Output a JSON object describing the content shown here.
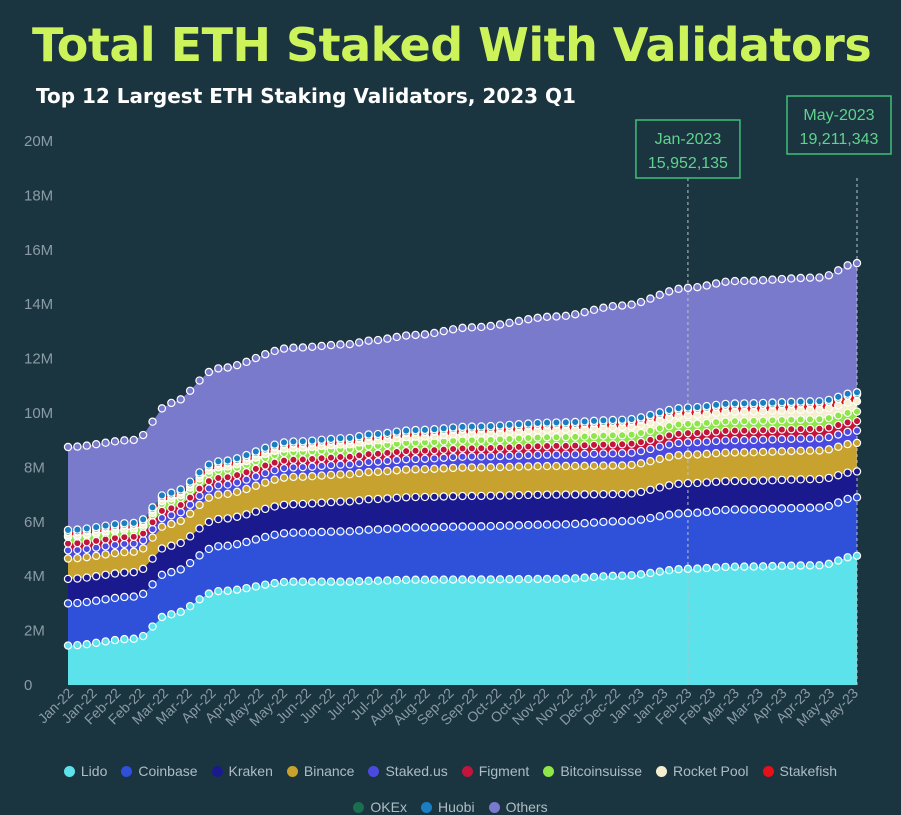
{
  "header": {
    "title": "Total ETH Staked With Validators",
    "subtitle": "Top 12 Largest ETH Staking Validators, 2023 Q1"
  },
  "colors": {
    "background": "#1b3540",
    "title": "#cdf35a",
    "annotation": "#5fd38d",
    "axis_text": "#8a9ba5"
  },
  "chart_data": {
    "type": "area",
    "stacked": true,
    "title": "Total ETH Staked With Validators",
    "subtitle": "Top 12 Largest ETH Staking Validators, 2023 Q1",
    "xlabel": "",
    "ylabel": "",
    "ylim": [
      0,
      20000000
    ],
    "yticks": [
      0,
      2000000,
      4000000,
      6000000,
      8000000,
      10000000,
      12000000,
      14000000,
      16000000,
      18000000,
      20000000
    ],
    "ytick_labels": [
      "0",
      "2M",
      "4M",
      "6M",
      "8M",
      "10M",
      "12M",
      "14M",
      "16M",
      "18M",
      "20M"
    ],
    "grid": false,
    "legend_position": "bottom",
    "x_tick_labels": [
      "Jan-22",
      "Jan-22",
      "Feb-22",
      "Feb-22",
      "Mar-22",
      "Mar-22",
      "Apr-22",
      "Apr-22",
      "May-22",
      "May-22",
      "Jun-22",
      "Jun-22",
      "Jul-22",
      "Jul-22",
      "Aug-22",
      "Aug-22",
      "Sep-22",
      "Sep-22",
      "Oct-22",
      "Oct-22",
      "Nov-22",
      "Nov-22",
      "Dec-22",
      "Dec-22",
      "Jan-23",
      "Jan-23",
      "Feb-23",
      "Feb-23",
      "Mar-23",
      "Mar-23",
      "Apr-23",
      "Apr-23",
      "May-23",
      "May-23"
    ],
    "x_anchor_points": [
      0,
      7,
      8,
      10,
      11,
      16,
      24,
      30,
      32,
      37,
      43,
      52,
      59,
      66,
      71,
      80,
      84
    ],
    "total_points": 85,
    "series": [
      {
        "name": "Lido",
        "color": "#5ce2ea",
        "values": [
          1.45,
          1.7,
          1.8,
          2.5,
          2.6,
          3.45,
          3.8,
          3.8,
          3.83,
          3.87,
          3.88,
          3.9,
          4.02,
          4.27,
          4.35,
          4.4,
          4.75,
          5.0,
          5.3,
          5.35,
          5.65,
          5.85
        ]
      },
      {
        "name": "Coinbase",
        "color": "#2f50d8",
        "values": [
          1.55,
          1.55,
          1.55,
          1.55,
          1.55,
          1.65,
          1.8,
          1.85,
          1.88,
          1.92,
          1.95,
          2.0,
          2.0,
          2.05,
          2.1,
          2.12,
          2.15,
          2.1,
          2.25,
          2.2,
          2.15,
          2.2
        ]
      },
      {
        "name": "Kraken",
        "color": "#1a1a8e",
        "values": [
          0.9,
          0.9,
          0.92,
          0.97,
          0.97,
          1.0,
          1.05,
          1.1,
          1.12,
          1.12,
          1.12,
          1.1,
          1.0,
          1.1,
          1.05,
          1.05,
          0.95,
          0.9,
          0.75,
          0.75,
          0.75,
          0.82
        ]
      },
      {
        "name": "Binance",
        "color": "#c8a22e",
        "values": [
          0.75,
          0.75,
          0.75,
          0.8,
          0.8,
          0.9,
          1.0,
          1.0,
          1.0,
          1.02,
          1.05,
          1.05,
          1.05,
          1.05,
          1.05,
          1.05,
          1.05,
          1.05,
          1.0,
          1.0,
          1.05,
          1.1
        ]
      },
      {
        "name": "Staked.us",
        "color": "#4a4ae0",
        "values": [
          0.3,
          0.3,
          0.3,
          0.32,
          0.32,
          0.34,
          0.35,
          0.36,
          0.37,
          0.38,
          0.4,
          0.42,
          0.45,
          0.45,
          0.45,
          0.45,
          0.45,
          0.45,
          0.5,
          0.5,
          0.5,
          0.55
        ]
      },
      {
        "name": "Figment",
        "color": "#c4143c",
        "values": [
          0.25,
          0.25,
          0.25,
          0.26,
          0.26,
          0.27,
          0.28,
          0.28,
          0.29,
          0.3,
          0.3,
          0.32,
          0.33,
          0.34,
          0.35,
          0.35,
          0.35,
          0.38,
          0.4,
          0.4,
          0.4,
          0.45
        ]
      },
      {
        "name": "Bitcoinsuisse",
        "color": "#8ee64a",
        "values": [
          0.25,
          0.25,
          0.25,
          0.26,
          0.26,
          0.27,
          0.28,
          0.28,
          0.29,
          0.3,
          0.3,
          0.32,
          0.33,
          0.34,
          0.35,
          0.35,
          0.35,
          0.38,
          0.4,
          0.4,
          0.4,
          0.45
        ]
      },
      {
        "name": "Rocket Pool",
        "color": "#f5efcf",
        "values": [
          0.05,
          0.06,
          0.07,
          0.1,
          0.1,
          0.12,
          0.16,
          0.18,
          0.2,
          0.22,
          0.25,
          0.28,
          0.3,
          0.32,
          0.35,
          0.36,
          0.38,
          0.4,
          0.42,
          0.45,
          0.48,
          0.5
        ]
      },
      {
        "name": "Stakefish",
        "color": "#e4101a",
        "values": [
          0.12,
          0.12,
          0.12,
          0.13,
          0.13,
          0.14,
          0.15,
          0.15,
          0.15,
          0.16,
          0.17,
          0.18,
          0.19,
          0.2,
          0.22,
          0.22,
          0.25,
          0.3,
          0.35,
          0.38,
          0.4,
          0.45
        ]
      },
      {
        "name": "OKEx",
        "color": "#1b6e50",
        "values": [
          0.02,
          0.02,
          0.02,
          0.02,
          0.02,
          0.02,
          0.02,
          0.02,
          0.02,
          0.02,
          0.02,
          0.02,
          0.02,
          0.02,
          0.02,
          0.02,
          0.02,
          0.02,
          0.02,
          0.02,
          0.02,
          0.02
        ]
      },
      {
        "name": "Huobi",
        "color": "#1a7fc2",
        "values": [
          0.06,
          0.06,
          0.06,
          0.06,
          0.06,
          0.06,
          0.06,
          0.06,
          0.06,
          0.06,
          0.06,
          0.06,
          0.06,
          0.06,
          0.06,
          0.06,
          0.06,
          0.06,
          0.06,
          0.06,
          0.06,
          0.06
        ]
      },
      {
        "name": "Others",
        "color": "#7a7acc",
        "values": [
          3.05,
          3.05,
          3.1,
          3.2,
          3.3,
          3.42,
          3.45,
          3.45,
          3.45,
          3.5,
          3.65,
          3.9,
          4.2,
          4.4,
          4.5,
          4.55,
          4.75,
          4.9,
          4.75,
          4.9,
          5.3,
          6.12
        ]
      }
    ],
    "series_values_unit": "millions of ETH",
    "annotations": [
      {
        "x_label": "Jan-2023",
        "value_label": "15,952,135",
        "total": 15952135,
        "x_point": 66
      },
      {
        "x_label": "May-2023",
        "value_label": "19,211,343",
        "total": 19211343,
        "x_point": 84
      }
    ]
  },
  "legend": {
    "items": [
      "Lido",
      "Coinbase",
      "Kraken",
      "Binance",
      "Staked.us",
      "Figment",
      "Bitcoinsuisse",
      "Rocket Pool",
      "Stakefish",
      "OKEx",
      "Huobi",
      "Others"
    ]
  }
}
